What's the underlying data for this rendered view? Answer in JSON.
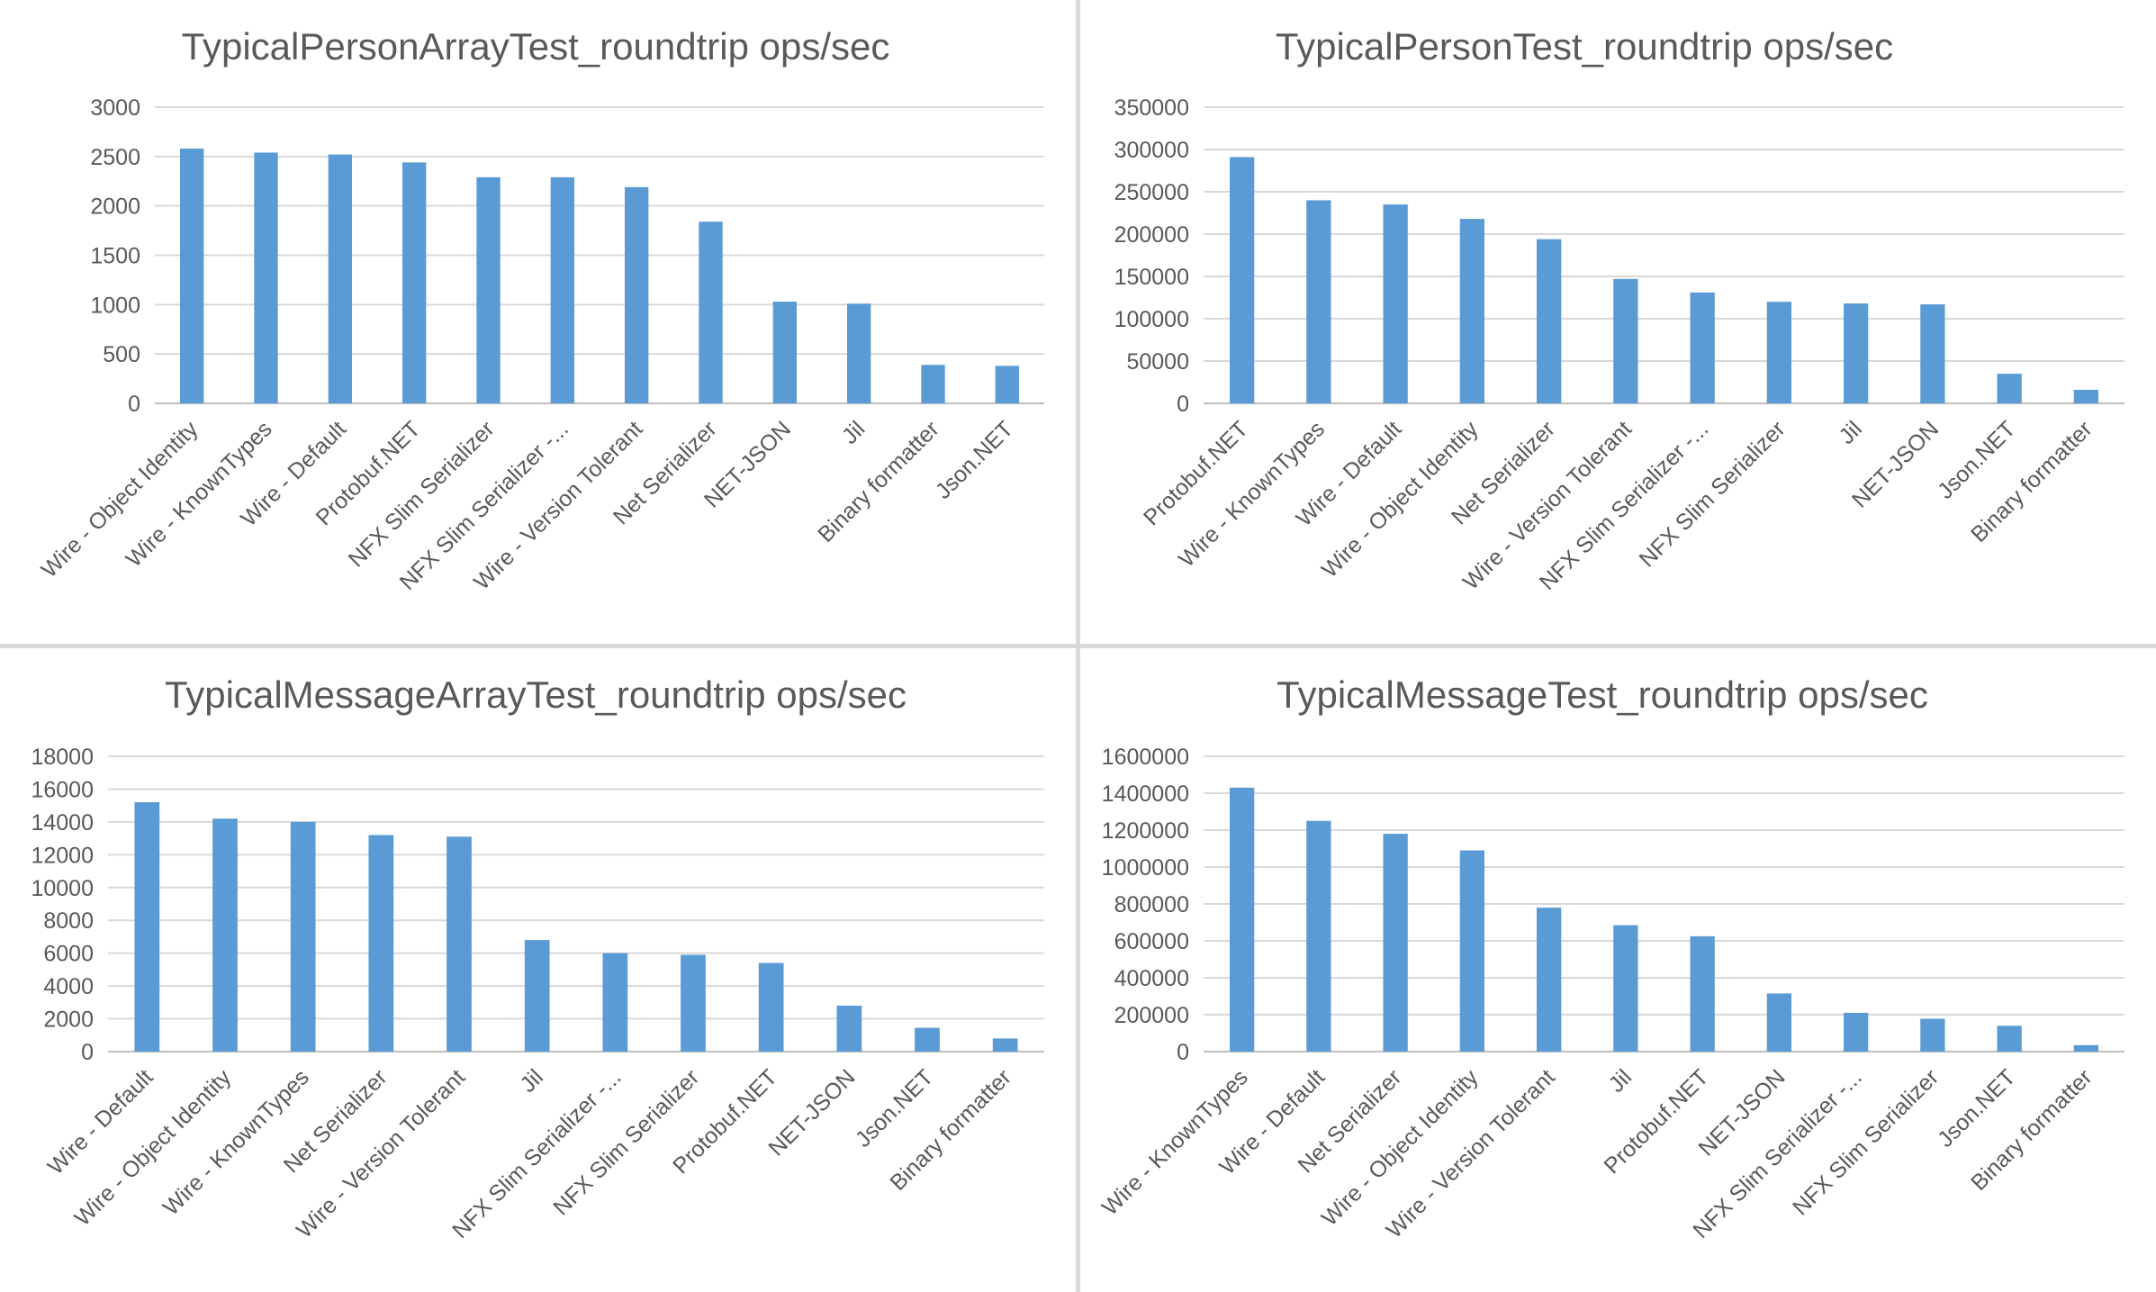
{
  "colors": {
    "bar": "#5b9bd5",
    "grid": "#d9d9d9",
    "text": "#595959"
  },
  "chart_data": [
    {
      "type": "bar",
      "title": "TypicalPersonArrayTest_roundtrip    ops/sec",
      "categories": [
        "Wire - Object Identity",
        "Wire - KnownTypes",
        "Wire - Default",
        "Protobuf.NET",
        "NFX Slim Serializer",
        "NFX Slim Serializer -...",
        "Wire - Version Tolerant",
        "Net Serializer",
        "NET-JSON",
        "Jil",
        "Binary formatter",
        "Json.NET"
      ],
      "values": [
        2580,
        2540,
        2520,
        2440,
        2290,
        2290,
        2190,
        1840,
        1030,
        1010,
        390,
        380
      ],
      "ylim": [
        0,
        3000
      ],
      "yticks": [
        "0",
        "500",
        "1000",
        "1500",
        "2000",
        "2500",
        "3000"
      ],
      "grid": true,
      "legend": "none"
    },
    {
      "type": "bar",
      "title": "TypicalPersonTest_roundtrip    ops/sec",
      "categories": [
        "Protobuf.NET",
        "Wire - KnownTypes",
        "Wire - Default",
        "Wire - Object Identity",
        "Net Serializer",
        "Wire - Version Tolerant",
        "NFX Slim Serializer -...",
        "NFX Slim Serializer",
        "Jil",
        "NET-JSON",
        "Json.NET",
        "Binary formatter"
      ],
      "values": [
        291000,
        240000,
        235000,
        218000,
        194000,
        147000,
        131000,
        120000,
        118000,
        117000,
        35000,
        16000
      ],
      "ylim": [
        0,
        350000
      ],
      "yticks": [
        "0",
        "50000",
        "100000",
        "150000",
        "200000",
        "250000",
        "300000",
        "350000"
      ],
      "grid": true,
      "legend": "none"
    },
    {
      "type": "bar",
      "title": "TypicalMessageArrayTest_roundtrip    ops/sec",
      "categories": [
        "Wire - Default",
        "Wire - Object Identity",
        "Wire - KnownTypes",
        "Net Serializer",
        "Wire - Version Tolerant",
        "Jil",
        "NFX Slim Serializer -...",
        "NFX Slim Serializer",
        "Protobuf.NET",
        "NET-JSON",
        "Json.NET",
        "Binary formatter"
      ],
      "values": [
        15200,
        14200,
        14000,
        13200,
        13100,
        6800,
        6000,
        5900,
        5400,
        2800,
        1450,
        800
      ],
      "ylim": [
        0,
        18000
      ],
      "yticks": [
        "0",
        "2000",
        "4000",
        "6000",
        "8000",
        "10000",
        "12000",
        "14000",
        "16000",
        "18000"
      ],
      "grid": true,
      "legend": "none"
    },
    {
      "type": "bar",
      "title": "TypicalMessageTest_roundtrip    ops/sec",
      "categories": [
        "Wire - KnownTypes",
        "Wire - Default",
        "Net Serializer",
        "Wire - Object Identity",
        "Wire - Version Tolerant",
        "Jil",
        "Protobuf.NET",
        "NET-JSON",
        "NFX Slim Serializer -...",
        "NFX Slim Serializer",
        "Json.NET",
        "Binary formatter"
      ],
      "values": [
        1430000,
        1250000,
        1180000,
        1090000,
        780000,
        685000,
        625000,
        315000,
        210000,
        178000,
        140000,
        35000
      ],
      "ylim": [
        0,
        1600000
      ],
      "yticks": [
        "0",
        "200000",
        "400000",
        "600000",
        "800000",
        "1000000",
        "1200000",
        "1400000",
        "1600000"
      ],
      "grid": true,
      "legend": "none"
    }
  ]
}
